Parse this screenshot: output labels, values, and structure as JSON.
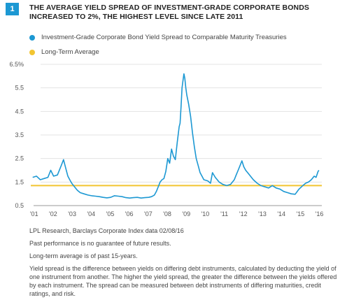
{
  "figure_number": "1",
  "chart_data": {
    "type": "line",
    "title": "THE AVERAGE YIELD SPREAD OF INVESTMENT-GRADE CORPORATE BONDS INCREASED TO 2%, THE HIGHEST LEVEL SINCE LATE 2011",
    "xlabel": "",
    "ylabel": "",
    "xlim": [
      2000.9,
      2016.2
    ],
    "ylim": [
      0.5,
      6.5
    ],
    "y_ticks": [
      0.5,
      1.5,
      2.5,
      3.5,
      4.5,
      5.5,
      6.5
    ],
    "y_tick_labels": [
      "0.5",
      "1.5",
      "2.5",
      "3.5",
      "4.5",
      "5.5",
      "6.5%"
    ],
    "x_ticks": [
      2001,
      2002,
      2003,
      2004,
      2005,
      2006,
      2007,
      2008,
      2009,
      2010,
      2011,
      2012,
      2013,
      2014,
      2015,
      2016
    ],
    "x_tick_labels": [
      "'01",
      "'02",
      "'03",
      "'04",
      "'05",
      "'06",
      "'07",
      "'08",
      "'09",
      "'10",
      "'11",
      "'12",
      "'13",
      "'14",
      "'15",
      "'16"
    ],
    "grid": "horizontal",
    "series": [
      {
        "name": "Investment-Grade Corporate Bond Yield Spread to Comparable Maturity Treasuries",
        "color": "#1c98d3",
        "x": [
          2001.0,
          2001.2,
          2001.4,
          2001.6,
          2001.8,
          2001.95,
          2002.1,
          2002.3,
          2002.5,
          2002.62,
          2002.75,
          2002.85,
          2002.95,
          2003.05,
          2003.2,
          2003.35,
          2003.5,
          2003.7,
          2003.9,
          2004.1,
          2004.3,
          2004.5,
          2004.7,
          2004.9,
          2005.1,
          2005.3,
          2005.5,
          2005.7,
          2005.9,
          2006.1,
          2006.3,
          2006.5,
          2006.7,
          2006.9,
          2007.1,
          2007.25,
          2007.4,
          2007.5,
          2007.6,
          2007.7,
          2007.8,
          2007.9,
          2008.0,
          2008.1,
          2008.2,
          2008.3,
          2008.4,
          2008.5,
          2008.6,
          2008.7,
          2008.75,
          2008.8,
          2008.85,
          2008.9,
          2008.95,
          2009.0,
          2009.05,
          2009.1,
          2009.2,
          2009.3,
          2009.4,
          2009.5,
          2009.6,
          2009.7,
          2009.8,
          2009.9,
          2010.0,
          2010.2,
          2010.35,
          2010.45,
          2010.6,
          2010.8,
          2011.0,
          2011.2,
          2011.4,
          2011.6,
          2011.7,
          2011.8,
          2011.9,
          2012.0,
          2012.1,
          2012.2,
          2012.3,
          2012.45,
          2012.6,
          2012.8,
          2013.0,
          2013.2,
          2013.4,
          2013.6,
          2013.8,
          2014.0,
          2014.2,
          2014.4,
          2014.6,
          2014.8,
          2015.0,
          2015.2,
          2015.35,
          2015.5,
          2015.65,
          2015.8,
          2015.9,
          2016.0,
          2016.05
        ],
        "y": [
          1.7,
          1.75,
          1.6,
          1.65,
          1.7,
          2.0,
          1.75,
          1.8,
          2.2,
          2.45,
          2.05,
          1.75,
          1.6,
          1.45,
          1.3,
          1.15,
          1.05,
          1.0,
          0.95,
          0.92,
          0.9,
          0.88,
          0.85,
          0.83,
          0.85,
          0.92,
          0.9,
          0.88,
          0.84,
          0.82,
          0.84,
          0.85,
          0.82,
          0.84,
          0.85,
          0.88,
          0.95,
          1.1,
          1.3,
          1.5,
          1.6,
          1.65,
          1.95,
          2.5,
          2.3,
          2.9,
          2.6,
          2.45,
          3.2,
          3.85,
          4.0,
          4.7,
          5.5,
          5.8,
          6.1,
          5.9,
          5.5,
          5.2,
          4.8,
          4.3,
          3.6,
          3.0,
          2.5,
          2.2,
          1.9,
          1.75,
          1.6,
          1.55,
          1.45,
          1.9,
          1.7,
          1.5,
          1.4,
          1.35,
          1.4,
          1.6,
          1.8,
          2.0,
          2.2,
          2.4,
          2.15,
          2.0,
          1.9,
          1.75,
          1.6,
          1.45,
          1.35,
          1.3,
          1.25,
          1.35,
          1.25,
          1.2,
          1.1,
          1.05,
          1.0,
          0.98,
          1.2,
          1.35,
          1.45,
          1.5,
          1.6,
          1.75,
          1.7,
          1.95,
          2.0
        ]
      },
      {
        "name": "Long-Term Average",
        "color": "#f2c531",
        "x": [
          2000.9,
          2016.2
        ],
        "y": [
          1.35,
          1.35
        ]
      }
    ]
  },
  "notes": {
    "source": "LPL Research, Barclays Corporate Index data  02/08/16",
    "disclaimer": "Past performance is no guarantee of future results.",
    "average_note": "Long-term average is of past 15-years.",
    "definition": "Yield spread is the difference between yields on differing debt instruments, calculated by deducting the yield of one instrument from another. The higher the yield spread, the greater the difference between the yields offered by each instrument. The spread can be measured between debt instruments of differing maturities, credit ratings, and risk."
  }
}
